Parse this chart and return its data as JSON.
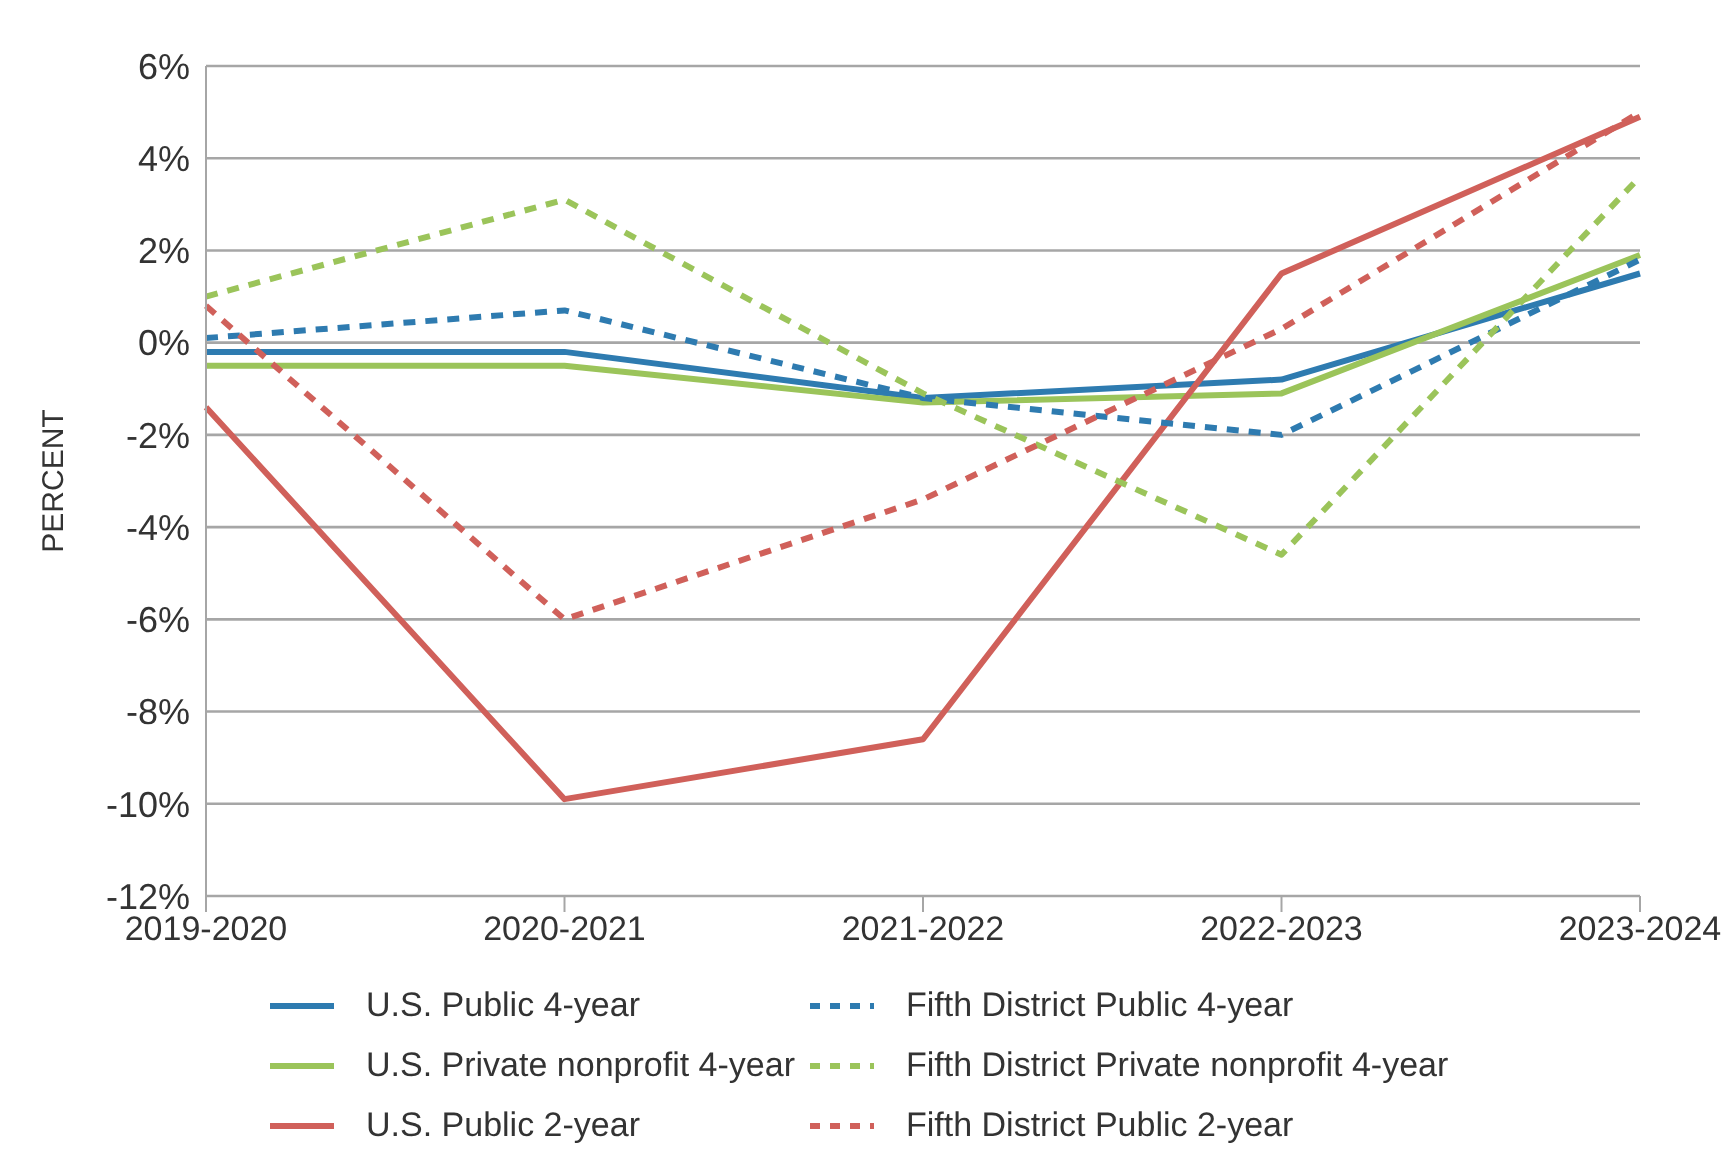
{
  "chart_data": {
    "type": "line",
    "ylabel": "PERCENT",
    "categories": [
      "2019-2020",
      "2020-2021",
      "2021-2022",
      "2022-2023",
      "2023-2024"
    ],
    "series": [
      {
        "name": "U.S. Public 4-year",
        "color": "#2e7bb0",
        "line_style": "solid",
        "values": [
          -0.2,
          -0.2,
          -1.2,
          -0.8,
          1.5
        ]
      },
      {
        "name": "U.S. Private nonprofit 4-year",
        "color": "#9bc45a",
        "line_style": "solid",
        "values": [
          -0.5,
          -0.5,
          -1.3,
          -1.1,
          1.9
        ]
      },
      {
        "name": "U.S. Public 2-year",
        "color": "#d0605a",
        "line_style": "solid",
        "values": [
          -1.4,
          -9.9,
          -8.6,
          1.5,
          4.9
        ]
      },
      {
        "name": "Fifth District Public 4-year",
        "color": "#2e7bb0",
        "line_style": "dashed",
        "values": [
          0.1,
          0.7,
          -1.2,
          -2.0,
          1.8
        ]
      },
      {
        "name": "Fifth District Private nonprofit 4-year",
        "color": "#9bc45a",
        "line_style": "dashed",
        "values": [
          1.0,
          3.1,
          -1.1,
          -4.6,
          3.6
        ]
      },
      {
        "name": "Fifth District Public 2-year",
        "color": "#d0605a",
        "line_style": "dashed",
        "values": [
          0.8,
          -6.0,
          -3.4,
          0.3,
          5.0
        ]
      }
    ],
    "ylim": [
      -12,
      6
    ],
    "yticks": [
      {
        "value": -12,
        "label": "-12%"
      },
      {
        "value": -10,
        "label": "-10%"
      },
      {
        "value": -8,
        "label": "-8%"
      },
      {
        "value": -6,
        "label": "-6%"
      },
      {
        "value": -4,
        "label": "-4%"
      },
      {
        "value": -2,
        "label": "-2%"
      },
      {
        "value": 0,
        "label": "0%"
      },
      {
        "value": 2,
        "label": "2%"
      },
      {
        "value": 4,
        "label": "4%"
      },
      {
        "value": 6,
        "label": "6%"
      }
    ],
    "grid": "y",
    "legend": "bottom",
    "marker": "none"
  }
}
